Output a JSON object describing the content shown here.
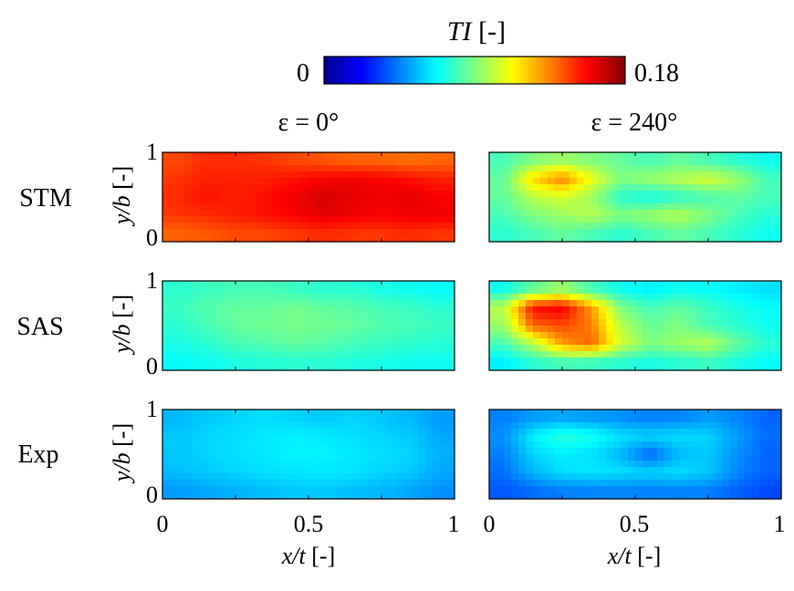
{
  "chart_data": {
    "type": "heatmap",
    "colorbar": {
      "label_italic": "TI",
      "label_unit": " [-]",
      "min": 0,
      "max": 0.18,
      "min_label": "0",
      "max_label": "0.18",
      "colormap": "jet"
    },
    "columns": [
      "ε = 0°",
      "ε = 240°"
    ],
    "rows": [
      "STM",
      "SAS",
      "Exp"
    ],
    "x_axis": {
      "label_italic": "x/t",
      "label_unit": " [-]",
      "ticks": [
        "0",
        "0.5",
        "1"
      ],
      "range": [
        0,
        1
      ]
    },
    "y_axis": {
      "label_italic": "y/b",
      "label_unit": " [-]",
      "ticks": [
        "0",
        "1"
      ],
      "range": [
        0,
        1
      ]
    },
    "x_coords": [
      0.05,
      0.15,
      0.25,
      0.35,
      0.45,
      0.55,
      0.65,
      0.75,
      0.85,
      0.95
    ],
    "y_coords": [
      0.9,
      0.7,
      0.5,
      0.3,
      0.1
    ],
    "panels": [
      {
        "row": "STM",
        "column": "ε = 0°",
        "values": [
          [
            0.145,
            0.15,
            0.15,
            0.148,
            0.145,
            0.143,
            0.14,
            0.14,
            0.138,
            0.14
          ],
          [
            0.148,
            0.152,
            0.152,
            0.152,
            0.155,
            0.158,
            0.16,
            0.158,
            0.155,
            0.152
          ],
          [
            0.15,
            0.155,
            0.152,
            0.155,
            0.16,
            0.165,
            0.162,
            0.16,
            0.162,
            0.158
          ],
          [
            0.148,
            0.15,
            0.152,
            0.155,
            0.158,
            0.162,
            0.16,
            0.158,
            0.16,
            0.16
          ],
          [
            0.14,
            0.142,
            0.145,
            0.145,
            0.148,
            0.15,
            0.148,
            0.148,
            0.15,
            0.148
          ]
        ]
      },
      {
        "row": "STM",
        "column": "ε = 240°",
        "values": [
          [
            0.08,
            0.09,
            0.095,
            0.09,
            0.085,
            0.08,
            0.085,
            0.08,
            0.075,
            0.07
          ],
          [
            0.085,
            0.12,
            0.135,
            0.11,
            0.09,
            0.095,
            0.1,
            0.105,
            0.095,
            0.08
          ],
          [
            0.085,
            0.1,
            0.105,
            0.095,
            0.075,
            0.07,
            0.075,
            0.08,
            0.085,
            0.08
          ],
          [
            0.08,
            0.09,
            0.095,
            0.1,
            0.09,
            0.095,
            0.1,
            0.09,
            0.08,
            0.075
          ],
          [
            0.075,
            0.08,
            0.085,
            0.08,
            0.075,
            0.08,
            0.085,
            0.08,
            0.075,
            0.07
          ]
        ]
      },
      {
        "row": "SAS",
        "column": "ε = 0°",
        "values": [
          [
            0.075,
            0.078,
            0.08,
            0.08,
            0.078,
            0.075,
            0.075,
            0.072,
            0.07,
            0.068
          ],
          [
            0.078,
            0.082,
            0.085,
            0.085,
            0.088,
            0.085,
            0.083,
            0.08,
            0.078,
            0.075
          ],
          [
            0.075,
            0.08,
            0.085,
            0.087,
            0.088,
            0.087,
            0.085,
            0.082,
            0.08,
            0.078
          ],
          [
            0.072,
            0.075,
            0.08,
            0.082,
            0.085,
            0.083,
            0.08,
            0.078,
            0.076,
            0.074
          ],
          [
            0.068,
            0.07,
            0.072,
            0.074,
            0.075,
            0.075,
            0.073,
            0.072,
            0.07,
            0.07
          ]
        ]
      },
      {
        "row": "SAS",
        "column": "ε = 240°",
        "values": [
          [
            0.07,
            0.085,
            0.095,
            0.08,
            0.07,
            0.065,
            0.07,
            0.068,
            0.065,
            0.062
          ],
          [
            0.1,
            0.155,
            0.16,
            0.13,
            0.09,
            0.08,
            0.085,
            0.078,
            0.072,
            0.068
          ],
          [
            0.095,
            0.14,
            0.145,
            0.135,
            0.1,
            0.085,
            0.09,
            0.08,
            0.075,
            0.07
          ],
          [
            0.08,
            0.1,
            0.13,
            0.14,
            0.105,
            0.09,
            0.095,
            0.1,
            0.085,
            0.075
          ],
          [
            0.065,
            0.075,
            0.08,
            0.078,
            0.075,
            0.072,
            0.075,
            0.078,
            0.072,
            0.068
          ]
        ]
      },
      {
        "row": "Exp",
        "column": "ε = 0°",
        "values": [
          [
            0.055,
            0.058,
            0.06,
            0.062,
            0.06,
            0.058,
            0.06,
            0.058,
            0.055,
            0.05
          ],
          [
            0.058,
            0.06,
            0.062,
            0.064,
            0.065,
            0.064,
            0.062,
            0.06,
            0.058,
            0.052
          ],
          [
            0.058,
            0.06,
            0.062,
            0.064,
            0.066,
            0.066,
            0.064,
            0.062,
            0.06,
            0.054
          ],
          [
            0.056,
            0.058,
            0.06,
            0.062,
            0.063,
            0.064,
            0.063,
            0.06,
            0.058,
            0.052
          ],
          [
            0.05,
            0.052,
            0.054,
            0.056,
            0.058,
            0.058,
            0.056,
            0.055,
            0.052,
            0.048
          ]
        ]
      },
      {
        "row": "Exp",
        "column": "ε = 240°",
        "values": [
          [
            0.045,
            0.05,
            0.052,
            0.05,
            0.048,
            0.045,
            0.046,
            0.05,
            0.046,
            0.04
          ],
          [
            0.048,
            0.065,
            0.075,
            0.07,
            0.062,
            0.06,
            0.062,
            0.06,
            0.05,
            0.042
          ],
          [
            0.045,
            0.06,
            0.065,
            0.062,
            0.055,
            0.04,
            0.055,
            0.058,
            0.048,
            0.04
          ],
          [
            0.042,
            0.055,
            0.062,
            0.064,
            0.062,
            0.06,
            0.062,
            0.058,
            0.046,
            0.04
          ],
          [
            0.038,
            0.042,
            0.045,
            0.046,
            0.046,
            0.045,
            0.046,
            0.045,
            0.04,
            0.035
          ]
        ]
      }
    ]
  }
}
